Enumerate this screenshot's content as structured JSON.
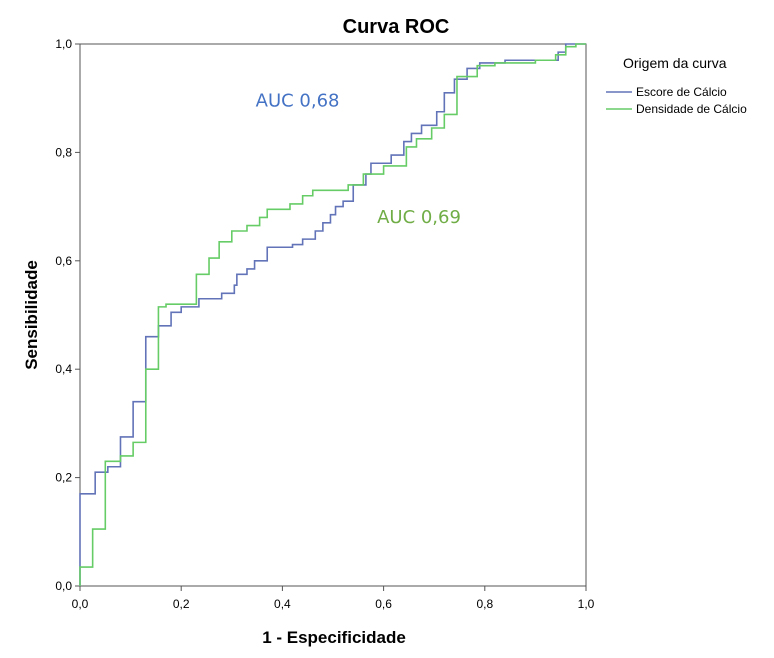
{
  "chart_data": {
    "type": "line",
    "title": "Curva ROC",
    "xlabel": "1 - Especificidade",
    "ylabel": "Sensibilidade",
    "xlim": [
      0,
      1
    ],
    "ylim": [
      0,
      1
    ],
    "x_ticks": [
      "0,0",
      "0,2",
      "0,4",
      "0,6",
      "0,8",
      "1,0"
    ],
    "y_ticks": [
      "0,0",
      "0,2",
      "0,4",
      "0,6",
      "0,8",
      "1,0"
    ],
    "grid": false,
    "legend": {
      "title": "Origem da curva",
      "position": "right",
      "entries": [
        "Escore de Cálcio",
        "Densidade de Cálcio"
      ]
    },
    "series": [
      {
        "name": "Escore de Cálcio",
        "color": "#6273b8",
        "points": [
          [
            0,
            0
          ],
          [
            0,
            0.17
          ],
          [
            0.03,
            0.17
          ],
          [
            0.03,
            0.21
          ],
          [
            0.055,
            0.21
          ],
          [
            0.055,
            0.22
          ],
          [
            0.08,
            0.22
          ],
          [
            0.08,
            0.275
          ],
          [
            0.105,
            0.275
          ],
          [
            0.105,
            0.34
          ],
          [
            0.13,
            0.34
          ],
          [
            0.13,
            0.46
          ],
          [
            0.155,
            0.46
          ],
          [
            0.155,
            0.48
          ],
          [
            0.18,
            0.48
          ],
          [
            0.18,
            0.505
          ],
          [
            0.2,
            0.505
          ],
          [
            0.2,
            0.515
          ],
          [
            0.235,
            0.515
          ],
          [
            0.235,
            0.53
          ],
          [
            0.28,
            0.53
          ],
          [
            0.28,
            0.54
          ],
          [
            0.305,
            0.54
          ],
          [
            0.305,
            0.555
          ],
          [
            0.31,
            0.555
          ],
          [
            0.31,
            0.575
          ],
          [
            0.33,
            0.575
          ],
          [
            0.33,
            0.585
          ],
          [
            0.345,
            0.585
          ],
          [
            0.345,
            0.6
          ],
          [
            0.37,
            0.6
          ],
          [
            0.37,
            0.625
          ],
          [
            0.42,
            0.625
          ],
          [
            0.42,
            0.63
          ],
          [
            0.44,
            0.63
          ],
          [
            0.44,
            0.64
          ],
          [
            0.465,
            0.64
          ],
          [
            0.465,
            0.655
          ],
          [
            0.48,
            0.655
          ],
          [
            0.48,
            0.67
          ],
          [
            0.495,
            0.67
          ],
          [
            0.495,
            0.685
          ],
          [
            0.505,
            0.685
          ],
          [
            0.505,
            0.7
          ],
          [
            0.52,
            0.7
          ],
          [
            0.52,
            0.71
          ],
          [
            0.54,
            0.71
          ],
          [
            0.54,
            0.74
          ],
          [
            0.565,
            0.74
          ],
          [
            0.565,
            0.76
          ],
          [
            0.575,
            0.76
          ],
          [
            0.575,
            0.78
          ],
          [
            0.615,
            0.78
          ],
          [
            0.615,
            0.795
          ],
          [
            0.64,
            0.795
          ],
          [
            0.64,
            0.82
          ],
          [
            0.655,
            0.82
          ],
          [
            0.655,
            0.835
          ],
          [
            0.675,
            0.835
          ],
          [
            0.675,
            0.85
          ],
          [
            0.705,
            0.85
          ],
          [
            0.705,
            0.875
          ],
          [
            0.72,
            0.875
          ],
          [
            0.72,
            0.91
          ],
          [
            0.74,
            0.91
          ],
          [
            0.74,
            0.935
          ],
          [
            0.765,
            0.935
          ],
          [
            0.765,
            0.955
          ],
          [
            0.79,
            0.955
          ],
          [
            0.79,
            0.965
          ],
          [
            0.84,
            0.965
          ],
          [
            0.84,
            0.97
          ],
          [
            0.945,
            0.97
          ],
          [
            0.945,
            0.985
          ],
          [
            0.96,
            0.985
          ],
          [
            0.96,
            1.0
          ],
          [
            1.0,
            1.0
          ]
        ]
      },
      {
        "name": "Densidade de Cálcio",
        "color": "#66cc66",
        "points": [
          [
            0,
            0
          ],
          [
            0,
            0.035
          ],
          [
            0.025,
            0.035
          ],
          [
            0.025,
            0.105
          ],
          [
            0.05,
            0.105
          ],
          [
            0.05,
            0.23
          ],
          [
            0.08,
            0.23
          ],
          [
            0.08,
            0.24
          ],
          [
            0.105,
            0.24
          ],
          [
            0.105,
            0.265
          ],
          [
            0.13,
            0.265
          ],
          [
            0.13,
            0.4
          ],
          [
            0.155,
            0.4
          ],
          [
            0.155,
            0.515
          ],
          [
            0.17,
            0.515
          ],
          [
            0.17,
            0.52
          ],
          [
            0.23,
            0.52
          ],
          [
            0.23,
            0.575
          ],
          [
            0.255,
            0.575
          ],
          [
            0.255,
            0.605
          ],
          [
            0.275,
            0.605
          ],
          [
            0.275,
            0.635
          ],
          [
            0.3,
            0.635
          ],
          [
            0.3,
            0.655
          ],
          [
            0.33,
            0.655
          ],
          [
            0.33,
            0.665
          ],
          [
            0.355,
            0.665
          ],
          [
            0.355,
            0.68
          ],
          [
            0.37,
            0.68
          ],
          [
            0.37,
            0.695
          ],
          [
            0.415,
            0.695
          ],
          [
            0.415,
            0.705
          ],
          [
            0.44,
            0.705
          ],
          [
            0.44,
            0.72
          ],
          [
            0.46,
            0.72
          ],
          [
            0.46,
            0.73
          ],
          [
            0.53,
            0.73
          ],
          [
            0.53,
            0.74
          ],
          [
            0.56,
            0.74
          ],
          [
            0.56,
            0.76
          ],
          [
            0.6,
            0.76
          ],
          [
            0.6,
            0.775
          ],
          [
            0.645,
            0.775
          ],
          [
            0.645,
            0.81
          ],
          [
            0.665,
            0.81
          ],
          [
            0.665,
            0.825
          ],
          [
            0.695,
            0.825
          ],
          [
            0.695,
            0.845
          ],
          [
            0.72,
            0.845
          ],
          [
            0.72,
            0.87
          ],
          [
            0.745,
            0.87
          ],
          [
            0.745,
            0.94
          ],
          [
            0.785,
            0.94
          ],
          [
            0.785,
            0.96
          ],
          [
            0.82,
            0.96
          ],
          [
            0.82,
            0.965
          ],
          [
            0.9,
            0.965
          ],
          [
            0.9,
            0.97
          ],
          [
            0.94,
            0.97
          ],
          [
            0.94,
            0.98
          ],
          [
            0.96,
            0.98
          ],
          [
            0.96,
            0.995
          ],
          [
            0.98,
            0.995
          ],
          [
            0.98,
            1.0
          ],
          [
            1.0,
            1.0
          ]
        ]
      }
    ],
    "annotations": [
      {
        "text": "AUC 0,68",
        "x": 0.43,
        "y": 0.885,
        "color": "#4472c4"
      },
      {
        "text": "AUC 0,69",
        "x": 0.67,
        "y": 0.67,
        "color": "#70ad47"
      }
    ]
  }
}
